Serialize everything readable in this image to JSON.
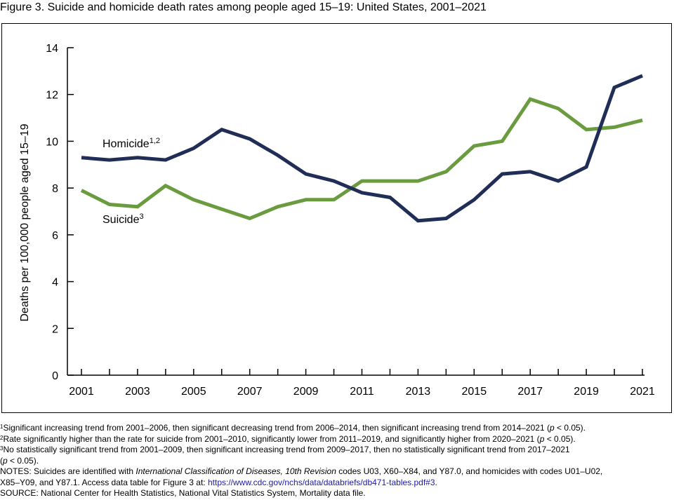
{
  "figure": {
    "title": "Figure 3. Suicide and homicide death rates among people aged 15–19: United States, 2001–2021"
  },
  "chart_data": {
    "type": "line",
    "title": "Figure 3. Suicide and homicide death rates among people aged 15–19: United States, 2001–2021",
    "xlabel": "",
    "ylabel": "Deaths per 100,000 people aged 15–19",
    "x": [
      2001,
      2002,
      2003,
      2004,
      2005,
      2006,
      2007,
      2008,
      2009,
      2010,
      2011,
      2012,
      2013,
      2014,
      2015,
      2016,
      2017,
      2018,
      2019,
      2020,
      2021
    ],
    "xticks": [
      2001,
      2002,
      2003,
      2004,
      2005,
      2006,
      2007,
      2008,
      2009,
      2010,
      2011,
      2012,
      2013,
      2014,
      2015,
      2016,
      2017,
      2018,
      2019,
      2020,
      2021
    ],
    "xtick_labels": [
      "2001",
      "2003",
      "2005",
      "2007",
      "2009",
      "2011",
      "2013",
      "2015",
      "2017",
      "2019",
      "2021"
    ],
    "ylim": [
      0,
      14
    ],
    "yticks": [
      0,
      2,
      4,
      6,
      8,
      10,
      12,
      14
    ],
    "grid": false,
    "legend": "inline labels",
    "series": [
      {
        "name": "Homicide",
        "sup": "1,2",
        "color": "#1f2d57",
        "values": [
          9.3,
          9.2,
          9.3,
          9.2,
          9.7,
          10.5,
          10.1,
          9.4,
          8.6,
          8.3,
          7.8,
          7.6,
          6.6,
          6.7,
          7.5,
          8.6,
          8.7,
          8.3,
          8.9,
          12.3,
          12.8
        ]
      },
      {
        "name": "Suicide",
        "sup": "3",
        "color": "#6a9c3f",
        "values": [
          7.9,
          7.3,
          7.2,
          8.1,
          7.5,
          7.1,
          6.7,
          7.2,
          7.5,
          7.5,
          8.3,
          8.3,
          8.3,
          8.7,
          9.8,
          10.0,
          11.8,
          11.4,
          10.5,
          10.6,
          10.9
        ]
      }
    ]
  },
  "notes": {
    "n1_sup": "1",
    "n1_text": "Significant increasing trend from 2001–2006, then significant decreasing trend from 2006–2014, then significant increasing trend from 2014–2021 (",
    "n1_p": "p",
    "n1_end": " < 0.05).",
    "n2_sup": "2",
    "n2_text": "Rate significantly higher than the rate for suicide from 2001–2010, significantly lower from 2011–2019, and significantly higher from 2020–2021 (",
    "n2_p": "p",
    "n2_end": " < 0.05).",
    "n3_sup": "3",
    "n3_text": "No statistically significant trend from 2001–2009, then significant increasing trend from 2009–2017, then no statistically significant trend from 2017–2021",
    "n3_line2_open": "(",
    "n3_p": "p",
    "n3_end": " < 0.05).",
    "notes_a": "NOTES: Suicides are identified with ",
    "notes_icd": "International Classification of Diseases, 10th Revision",
    "notes_b": " codes U03, X60–X84, and Y87.0, and homicides with codes U01–U02,",
    "notes_c": "X85–Y09, and Y87.1. Access data table for Figure 3 at: ",
    "notes_link": "https://www.cdc.gov/nchs/data/databriefs/db471-tables.pdf#3",
    "notes_d": ".",
    "source": "SOURCE: National Center for Health Statistics, National Vital Statistics System, Mortality data file."
  }
}
